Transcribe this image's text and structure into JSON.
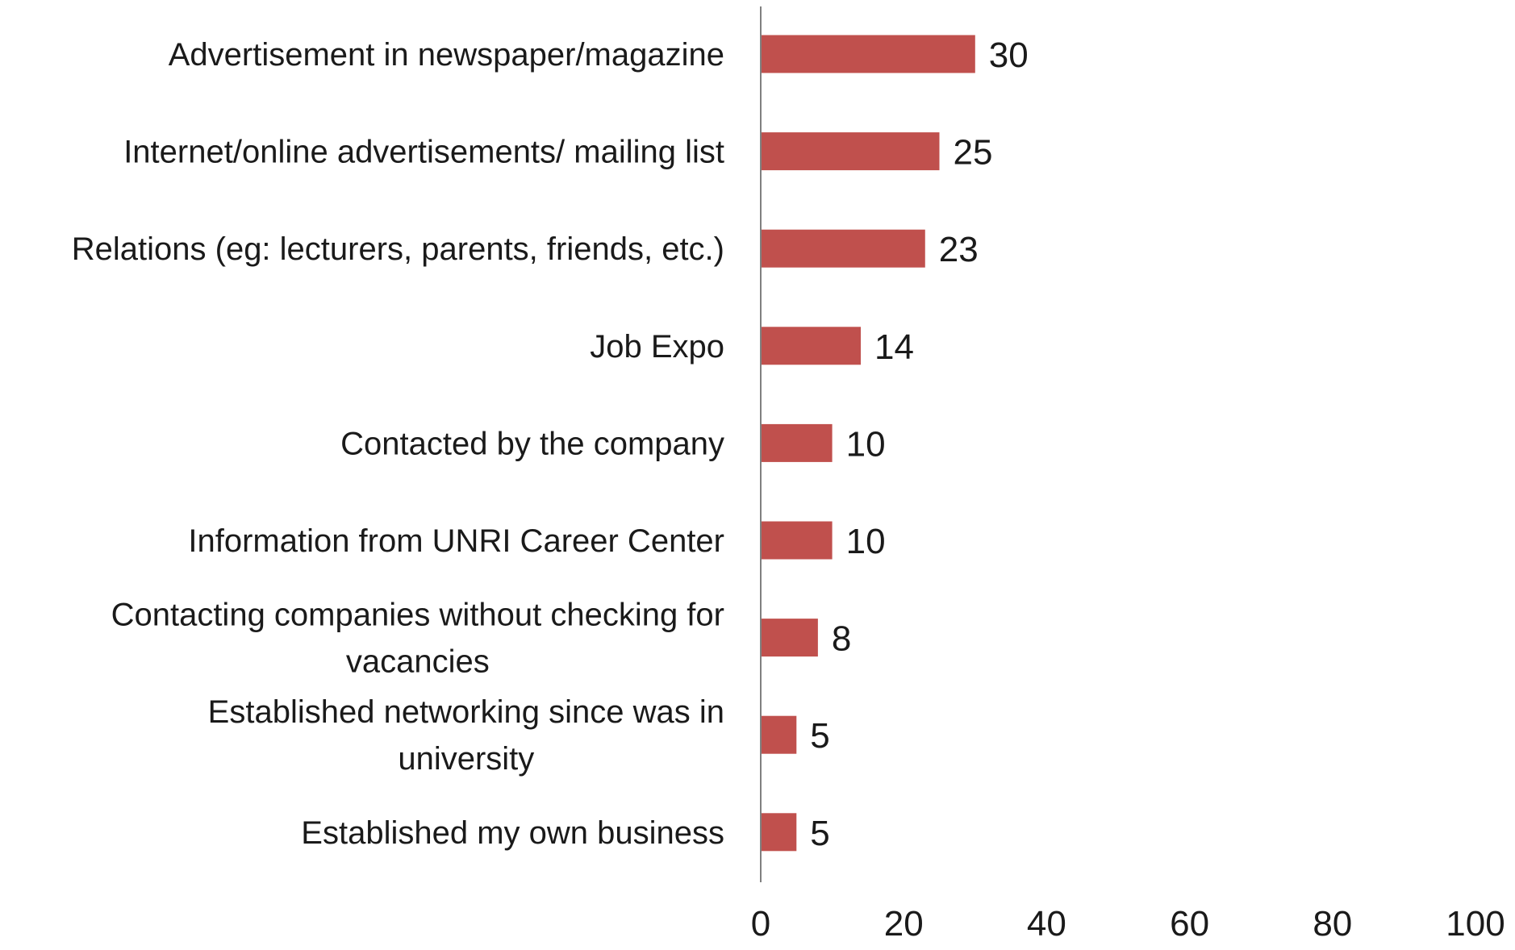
{
  "chart_data": {
    "type": "bar",
    "orientation": "horizontal",
    "categories": [
      "Advertisement in newspaper/magazine",
      "Internet/online advertisements/ mailing list",
      "Relations (eg: lecturers, parents, friends, etc.)",
      "Job Expo",
      "Contacted by the company",
      "Information from UNRI Career Center",
      "Contacting companies without checking for vacancies",
      "Established networking since was in university",
      "Established my own business"
    ],
    "category_lines": [
      [
        "Advertisement in newspaper/magazine"
      ],
      [
        "Internet/online advertisements/ mailing list"
      ],
      [
        "Relations (eg: lecturers, parents, friends, etc.)"
      ],
      [
        "Job Expo"
      ],
      [
        "Contacted by the company"
      ],
      [
        "Information from UNRI Career Center"
      ],
      [
        "Contacting companies without checking for",
        "vacancies"
      ],
      [
        "Established networking since was in",
        "university"
      ],
      [
        "Established my own business"
      ]
    ],
    "values": [
      30,
      25,
      23,
      14,
      10,
      10,
      8,
      5,
      5
    ],
    "value_labels": [
      "30",
      "25",
      "23",
      "14",
      "10",
      "10",
      "8",
      "5",
      "5"
    ],
    "xlim": [
      0,
      100
    ],
    "xticks": [
      0,
      20,
      40,
      60,
      80,
      100
    ],
    "xtick_labels": [
      "0",
      "20",
      "40",
      "60",
      "80",
      "100"
    ],
    "title": "",
    "xlabel": "",
    "ylabel": "",
    "grid": false,
    "legend": "none",
    "colors": {
      "bar": "#C0504D",
      "axis": "#808080",
      "text": "#1a1a1a"
    }
  }
}
